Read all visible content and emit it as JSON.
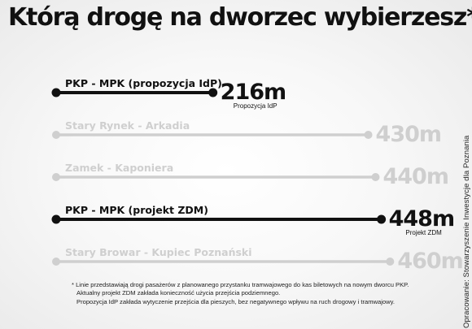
{
  "title": "Którą drogę na dworzec wybierzesz*?",
  "credit": "Opracowanie: Stowarzyszenie Inwestycje dla Poznania",
  "footnote": {
    "line1": "* Linie przedstawiają drogi pasażerów z planowanego przystanku tramwajowego do kas biletowych na nowym dworcu PKP.",
    "line2": "Aktualny projekt ZDM zakłada konieczność użycia przejścia podziemnego.",
    "line3": "Propozycja IdP zakłada wytyczenie przejścia dla pieszych, bez negatywnego wpływu na ruch drogowy i tramwajowy."
  },
  "colors": {
    "highlight": "#111111",
    "muted": "#cfcfcf",
    "text": "#111111"
  },
  "chart_data": {
    "type": "bar",
    "unit": "m",
    "xlim": [
      0,
      460
    ],
    "bars": [
      {
        "label": "PKP - MPK (propozycja IdP)",
        "value": 216,
        "value_label": "216m",
        "sublabel": "Propozycja IdP",
        "highlight": true
      },
      {
        "label": "Stary Rynek - Arkadia",
        "value": 430,
        "value_label": "430m",
        "sublabel": "",
        "highlight": false
      },
      {
        "label": "Zamek - Kaponiera",
        "value": 440,
        "value_label": "440m",
        "sublabel": "",
        "highlight": false
      },
      {
        "label": "PKP - MPK (projekt ZDM)",
        "value": 448,
        "value_label": "448m",
        "sublabel": "Projekt ZDM",
        "highlight": true
      },
      {
        "label": "Stary Browar - Kupiec Poznański",
        "value": 460,
        "value_label": "460m",
        "sublabel": "",
        "highlight": false
      }
    ]
  }
}
